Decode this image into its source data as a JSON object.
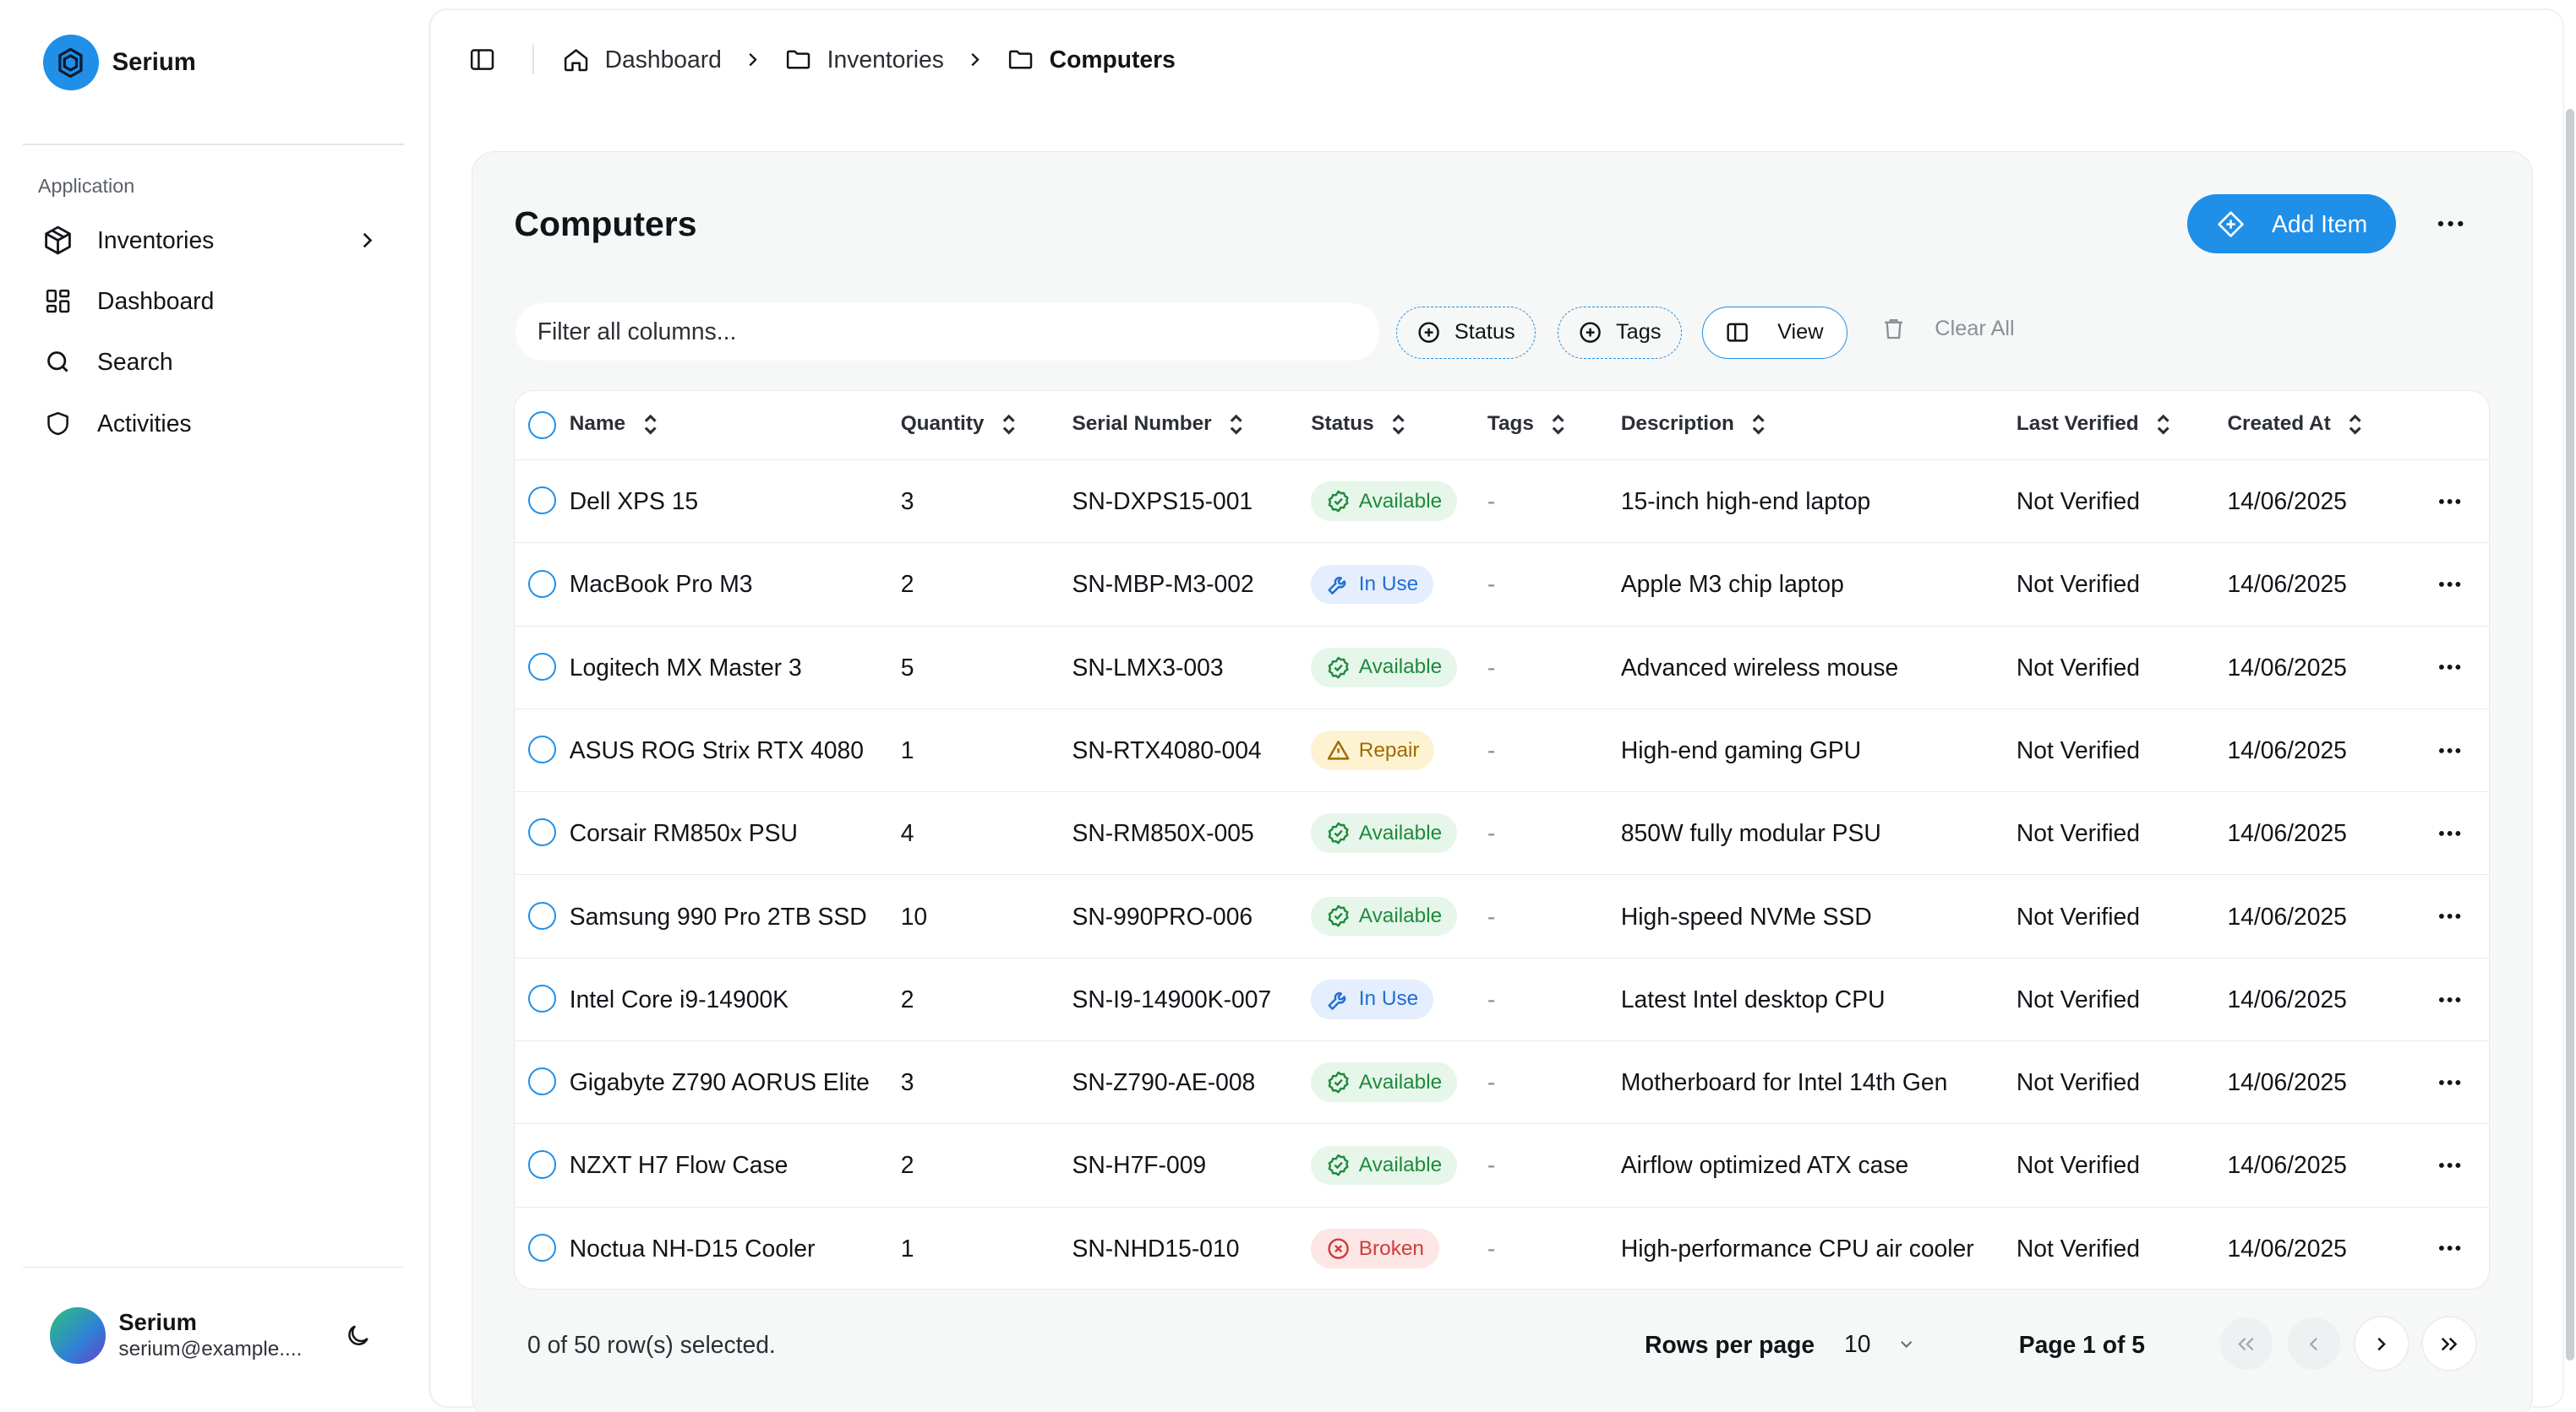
{
  "brand": {
    "name": "Serium",
    "accent": "#1f8fe8"
  },
  "sidebar": {
    "group_label": "Application",
    "items": [
      {
        "label": "Inventories",
        "icon": "package-icon",
        "has_submenu": true
      },
      {
        "label": "Dashboard",
        "icon": "layout-grid-icon"
      },
      {
        "label": "Search",
        "icon": "search-icon"
      },
      {
        "label": "Activities",
        "icon": "shield-icon"
      }
    ],
    "user": {
      "name": "Serium",
      "email": "serium@example...."
    }
  },
  "breadcrumb": {
    "items": [
      {
        "label": "Dashboard",
        "icon": "home-icon"
      },
      {
        "label": "Inventories",
        "icon": "folder-icon"
      },
      {
        "label": "Computers",
        "icon": "folder-icon"
      }
    ]
  },
  "page": {
    "title": "Computers",
    "add_button": "Add Item",
    "filter_placeholder": "Filter all columns...",
    "filters": {
      "status": "Status",
      "tags": "Tags",
      "view": "View",
      "clear": "Clear All"
    }
  },
  "table": {
    "columns": [
      "Name",
      "Quantity",
      "Serial Number",
      "Status",
      "Tags",
      "Description",
      "Last Verified",
      "Created At"
    ],
    "rows": [
      {
        "name": "Dell XPS 15",
        "quantity": "3",
        "serial": "SN-DXPS15-001",
        "status": "Available",
        "status_type": "available",
        "tags": "-",
        "description": "15-inch high-end laptop",
        "last_verified": "Not Verified",
        "created_at": "14/06/2025"
      },
      {
        "name": "MacBook Pro M3",
        "quantity": "2",
        "serial": "SN-MBP-M3-002",
        "status": "In Use",
        "status_type": "inuse",
        "tags": "-",
        "description": "Apple M3 chip laptop",
        "last_verified": "Not Verified",
        "created_at": "14/06/2025"
      },
      {
        "name": "Logitech MX Master 3",
        "quantity": "5",
        "serial": "SN-LMX3-003",
        "status": "Available",
        "status_type": "available",
        "tags": "-",
        "description": "Advanced wireless mouse",
        "last_verified": "Not Verified",
        "created_at": "14/06/2025"
      },
      {
        "name": "ASUS ROG Strix RTX 4080",
        "quantity": "1",
        "serial": "SN-RTX4080-004",
        "status": "Repair",
        "status_type": "repair",
        "tags": "-",
        "description": "High-end gaming GPU",
        "last_verified": "Not Verified",
        "created_at": "14/06/2025"
      },
      {
        "name": "Corsair RM850x PSU",
        "quantity": "4",
        "serial": "SN-RM850X-005",
        "status": "Available",
        "status_type": "available",
        "tags": "-",
        "description": "850W fully modular PSU",
        "last_verified": "Not Verified",
        "created_at": "14/06/2025"
      },
      {
        "name": "Samsung 990 Pro 2TB SSD",
        "quantity": "10",
        "serial": "SN-990PRO-006",
        "status": "Available",
        "status_type": "available",
        "tags": "-",
        "description": "High-speed NVMe SSD",
        "last_verified": "Not Verified",
        "created_at": "14/06/2025"
      },
      {
        "name": "Intel Core i9-14900K",
        "quantity": "2",
        "serial": "SN-I9-14900K-007",
        "status": "In Use",
        "status_type": "inuse",
        "tags": "-",
        "description": "Latest Intel desktop CPU",
        "last_verified": "Not Verified",
        "created_at": "14/06/2025"
      },
      {
        "name": "Gigabyte Z790 AORUS Elite",
        "quantity": "3",
        "serial": "SN-Z790-AE-008",
        "status": "Available",
        "status_type": "available",
        "tags": "-",
        "description": "Motherboard for Intel 14th Gen",
        "last_verified": "Not Verified",
        "created_at": "14/06/2025"
      },
      {
        "name": "NZXT H7 Flow Case",
        "quantity": "2",
        "serial": "SN-H7F-009",
        "status": "Available",
        "status_type": "available",
        "tags": "-",
        "description": "Airflow optimized ATX case",
        "last_verified": "Not Verified",
        "created_at": "14/06/2025"
      },
      {
        "name": "Noctua NH-D15 Cooler",
        "quantity": "1",
        "serial": "SN-NHD15-010",
        "status": "Broken",
        "status_type": "broken",
        "tags": "-",
        "description": "High-performance CPU air cooler",
        "last_verified": "Not Verified",
        "created_at": "14/06/2025"
      }
    ]
  },
  "footer": {
    "selection": "0 of 50 row(s) selected.",
    "rows_per_page_label": "Rows per page",
    "rows_per_page_value": "10",
    "page_label": "Page 1 of 5"
  }
}
